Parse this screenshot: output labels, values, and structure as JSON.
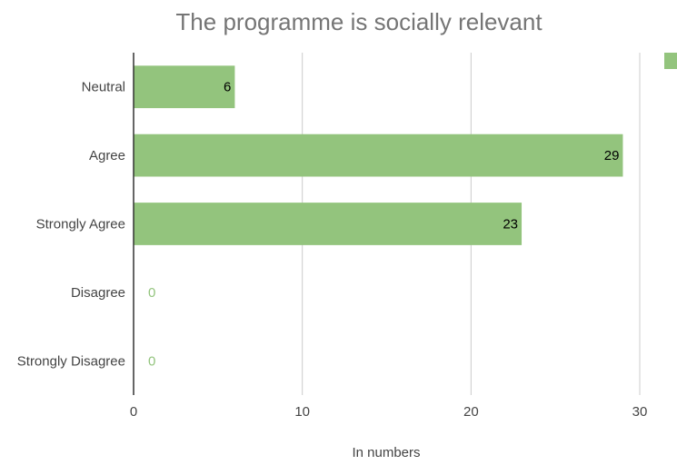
{
  "chart_data": {
    "type": "bar",
    "orientation": "horizontal",
    "title": "The programme is socially relevant",
    "xlabel": "In numbers",
    "ylabel": "",
    "categories": [
      "Neutral",
      "Agree",
      "Strongly Agree",
      "Disagree",
      "Strongly Disagree"
    ],
    "values": [
      6,
      29,
      23,
      0,
      0
    ],
    "data_labels": [
      "6",
      "29",
      "23",
      "0",
      "0"
    ],
    "xlim": [
      0,
      30
    ],
    "xticks": [
      0,
      10,
      20,
      30
    ],
    "xtick_labels": [
      "0",
      "10",
      "20",
      "30"
    ],
    "grid": "vertical",
    "legend": "top-right",
    "colors": {
      "bar": "#93c47d",
      "zero_label": "#93c47d",
      "label": "#000000",
      "grid": "#cccccc",
      "axis": "#333333",
      "title": "#757575",
      "tick": "#444444"
    }
  }
}
